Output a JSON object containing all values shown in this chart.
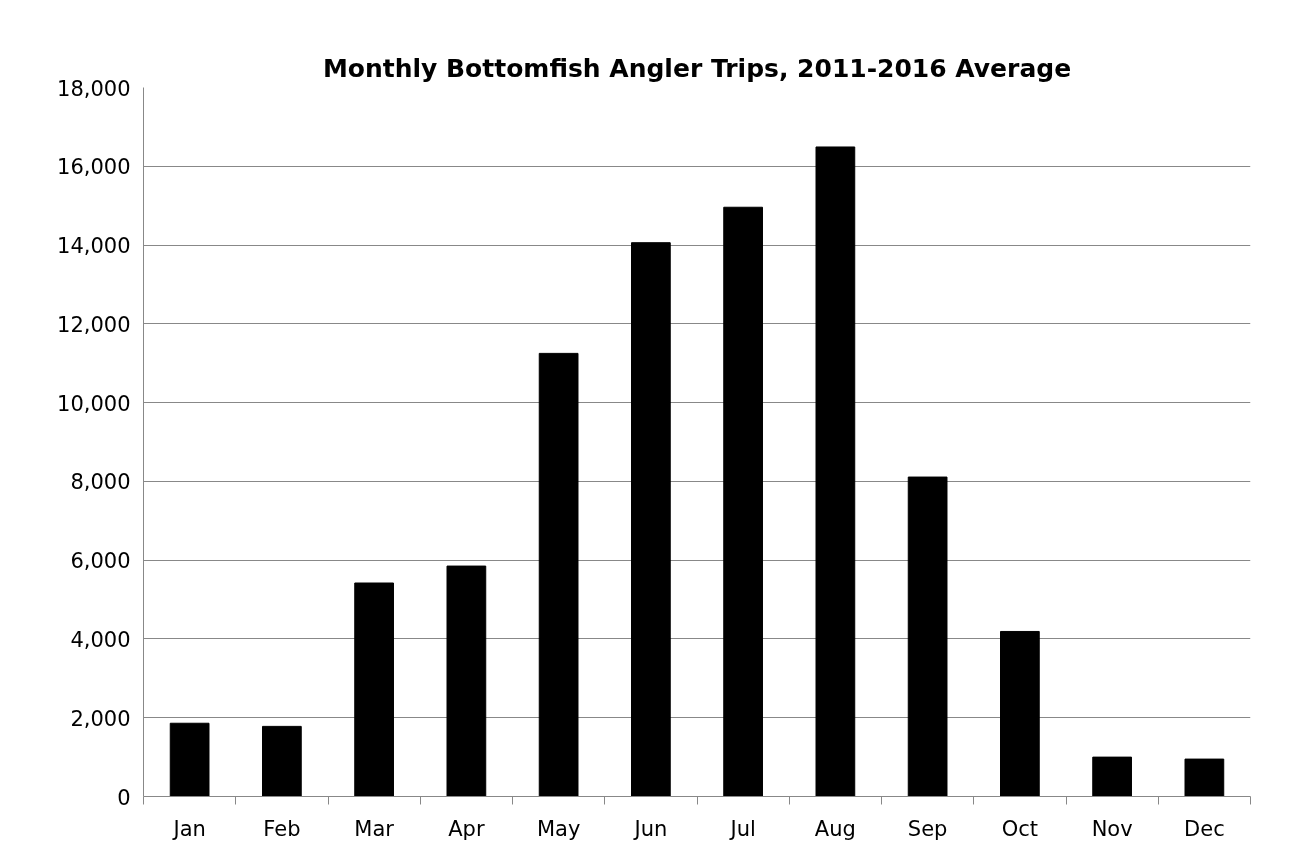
{
  "chart_data": {
    "type": "bar",
    "title": "Monthly Bottomfish Angler Trips, 2011-2016 Average",
    "categories": [
      "Jan",
      "Feb",
      "Mar",
      "Apr",
      "May",
      "Jun",
      "Jul",
      "Aug",
      "Sep",
      "Oct",
      "Nov",
      "Dec"
    ],
    "values": [
      1860,
      1780,
      5420,
      5850,
      11250,
      14060,
      14960,
      16490,
      8110,
      4190,
      1000,
      950
    ],
    "color": "#000000",
    "ylim": [
      0,
      18000
    ],
    "yticks": [
      {
        "value": 0,
        "label": "0"
      },
      {
        "value": 2000,
        "label": "2,000"
      },
      {
        "value": 4000,
        "label": "4,000"
      },
      {
        "value": 6000,
        "label": "6,000"
      },
      {
        "value": 8000,
        "label": "8,000"
      },
      {
        "value": 10000,
        "label": "10,000"
      },
      {
        "value": 12000,
        "label": "12,000"
      },
      {
        "value": 14000,
        "label": "14,000"
      },
      {
        "value": 16000,
        "label": "16,000"
      },
      {
        "value": 18000,
        "label": "18,000"
      }
    ],
    "grid": "y"
  }
}
